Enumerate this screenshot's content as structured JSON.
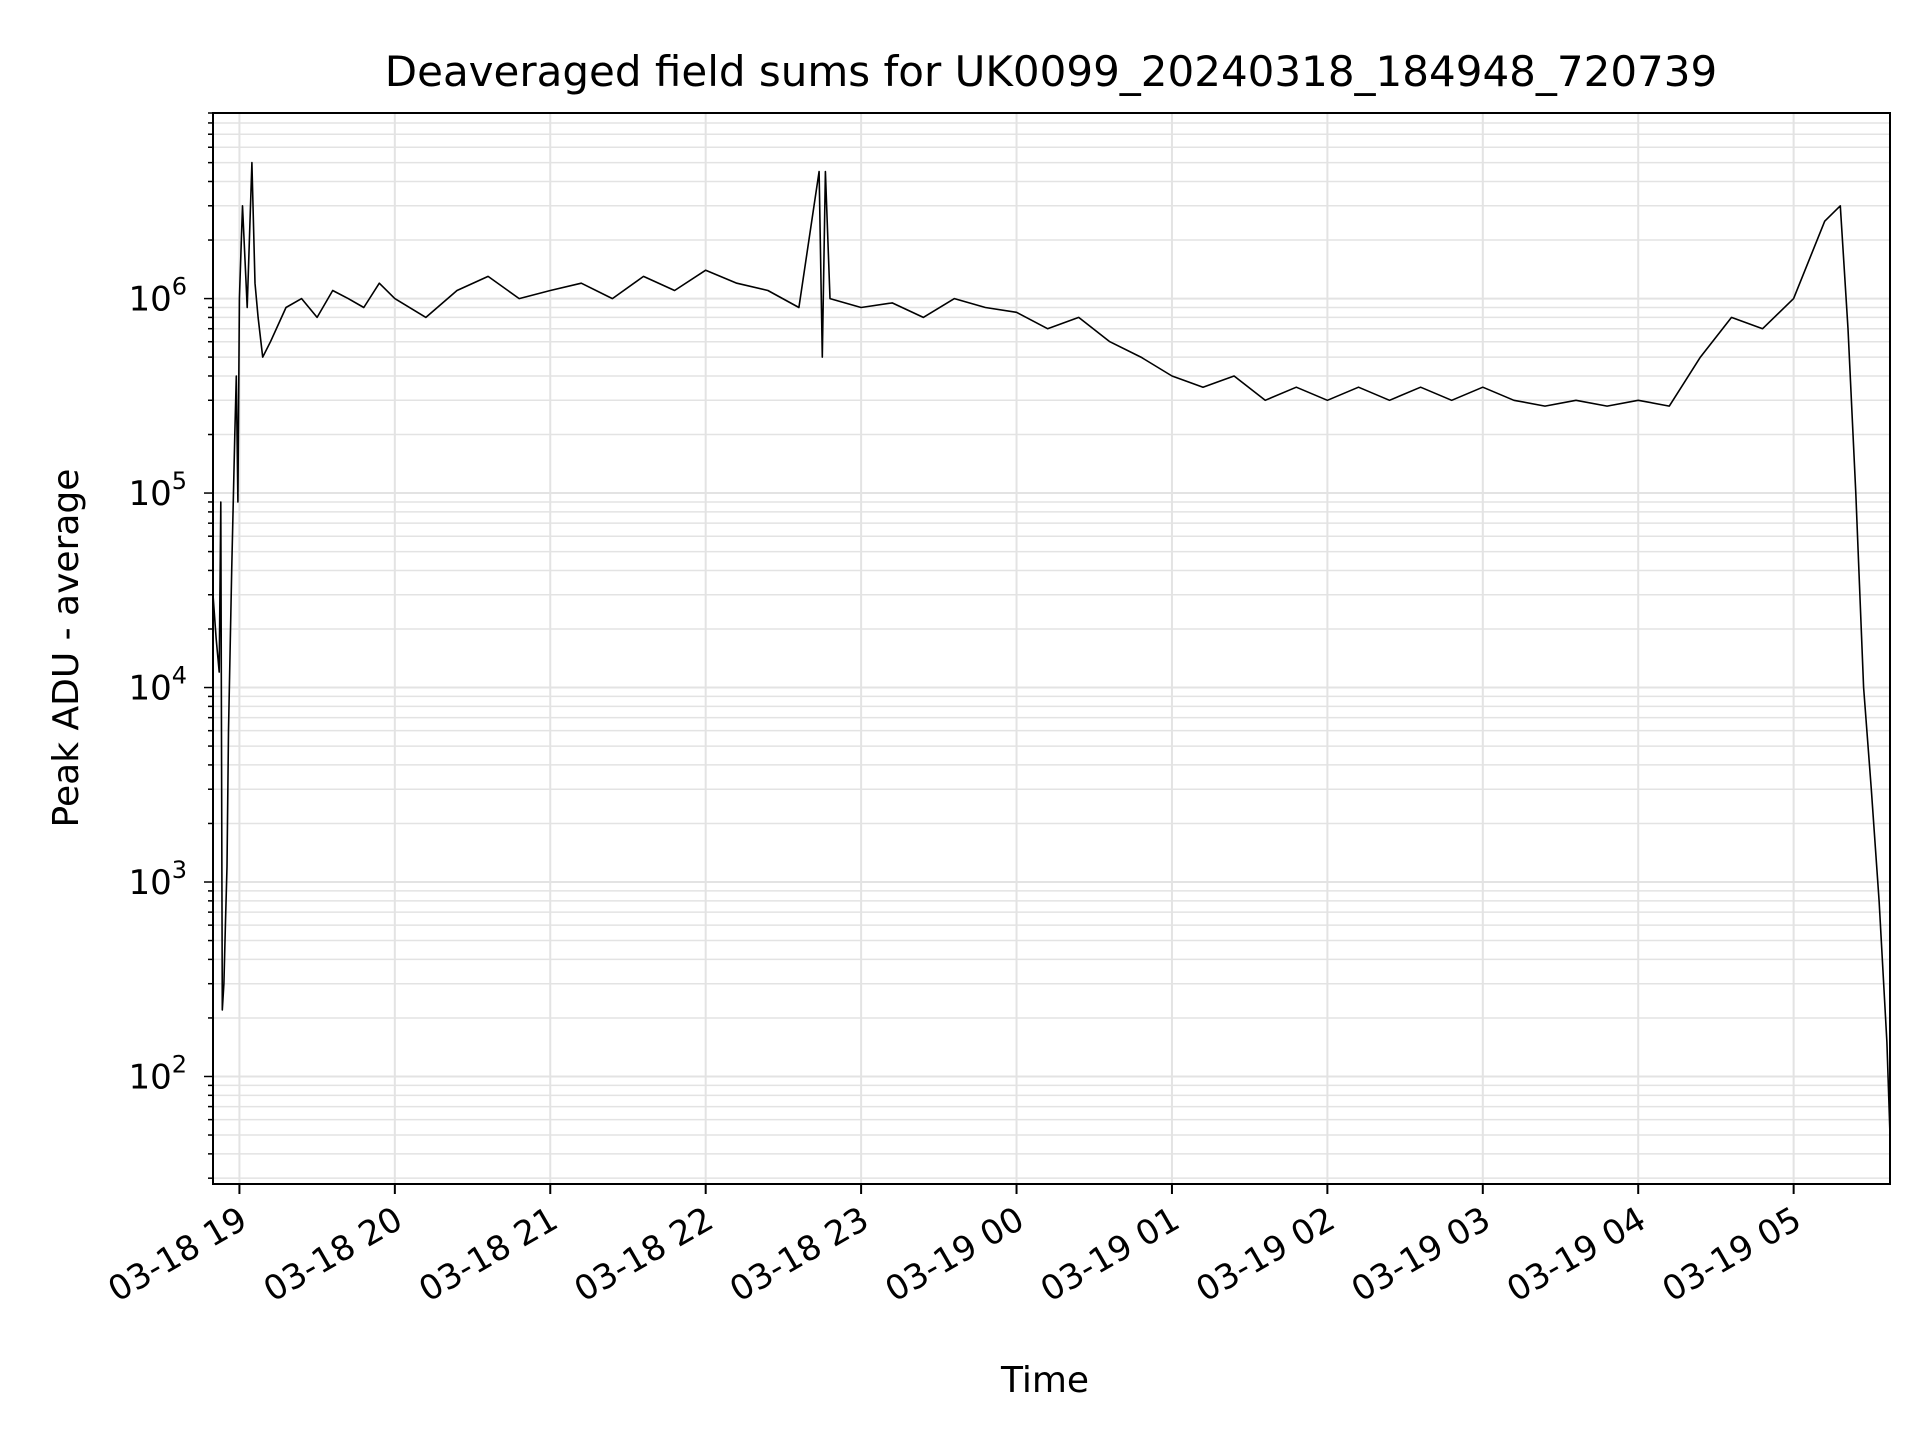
{
  "chart_data": {
    "type": "line",
    "title": "Deaveraged field sums for UK0099_20240318_184948_720739",
    "xlabel": "Time",
    "ylabel": "Peak ADU - average",
    "yscale": "log",
    "ylim": [
      28,
      9000000
    ],
    "xlim_hours_from_0318_19h": [
      -0.17,
      10.62
    ],
    "grid": true,
    "legend": "none",
    "x_ticks": [
      {
        "label": "03-18 19",
        "hour": 0
      },
      {
        "label": "03-18 20",
        "hour": 1
      },
      {
        "label": "03-18 21",
        "hour": 2
      },
      {
        "label": "03-18 22",
        "hour": 3
      },
      {
        "label": "03-18 23",
        "hour": 4
      },
      {
        "label": "03-19 00",
        "hour": 5
      },
      {
        "label": "03-19 01",
        "hour": 6
      },
      {
        "label": "03-19 02",
        "hour": 7
      },
      {
        "label": "03-19 03",
        "hour": 8
      },
      {
        "label": "03-19 04",
        "hour": 9
      },
      {
        "label": "03-19 05",
        "hour": 10
      }
    ],
    "y_ticks": [
      {
        "base": "10",
        "exp": "2",
        "value": 100
      },
      {
        "base": "10",
        "exp": "3",
        "value": 1000
      },
      {
        "base": "10",
        "exp": "4",
        "value": 10000
      },
      {
        "base": "10",
        "exp": "5",
        "value": 100000
      },
      {
        "base": "10",
        "exp": "6",
        "value": 1000000
      }
    ],
    "series": [
      {
        "color": "#000000",
        "x": [
          -0.17,
          -0.15,
          -0.13,
          -0.12,
          -0.11,
          -0.1,
          -0.09,
          -0.08,
          -0.07,
          -0.05,
          -0.03,
          -0.02,
          -0.01,
          0.0,
          0.02,
          0.05,
          0.08,
          0.1,
          0.12,
          0.15,
          0.2,
          0.3,
          0.4,
          0.5,
          0.6,
          0.7,
          0.8,
          0.9,
          1.0,
          1.2,
          1.4,
          1.6,
          1.8,
          2.0,
          2.2,
          2.4,
          2.6,
          2.8,
          3.0,
          3.2,
          3.4,
          3.6,
          3.73,
          3.75,
          3.77,
          3.8,
          4.0,
          4.2,
          4.4,
          4.6,
          4.8,
          5.0,
          5.2,
          5.4,
          5.6,
          5.8,
          6.0,
          6.2,
          6.4,
          6.6,
          6.8,
          7.0,
          7.2,
          7.4,
          7.6,
          7.8,
          8.0,
          8.2,
          8.4,
          8.6,
          8.8,
          9.0,
          9.2,
          9.4,
          9.6,
          9.8,
          10.0,
          10.2,
          10.3,
          10.35,
          10.4,
          10.45,
          10.5,
          10.55,
          10.6,
          10.62
        ],
        "y": [
          30000,
          18000,
          12000,
          90000,
          220,
          300,
          600,
          1200,
          6000,
          40000,
          200000,
          400000,
          90000,
          1000000,
          3000000,
          900000,
          5000000,
          1200000,
          800000,
          500000,
          600000,
          900000,
          1000000,
          800000,
          1100000,
          1000000,
          900000,
          1200000,
          1000000,
          800000,
          1100000,
          1300000,
          1000000,
          1100000,
          1200000,
          1000000,
          1300000,
          1100000,
          1400000,
          1200000,
          1100000,
          900000,
          4500000,
          500000,
          4500000,
          1000000,
          900000,
          950000,
          800000,
          1000000,
          900000,
          850000,
          700000,
          800000,
          600000,
          500000,
          400000,
          350000,
          400000,
          300000,
          350000,
          300000,
          350000,
          300000,
          350000,
          300000,
          350000,
          300000,
          280000,
          300000,
          280000,
          300000,
          280000,
          500000,
          800000,
          700000,
          1000000,
          2500000,
          3000000,
          700000,
          100000,
          10000,
          3000,
          800,
          150,
          50
        ]
      }
    ]
  }
}
